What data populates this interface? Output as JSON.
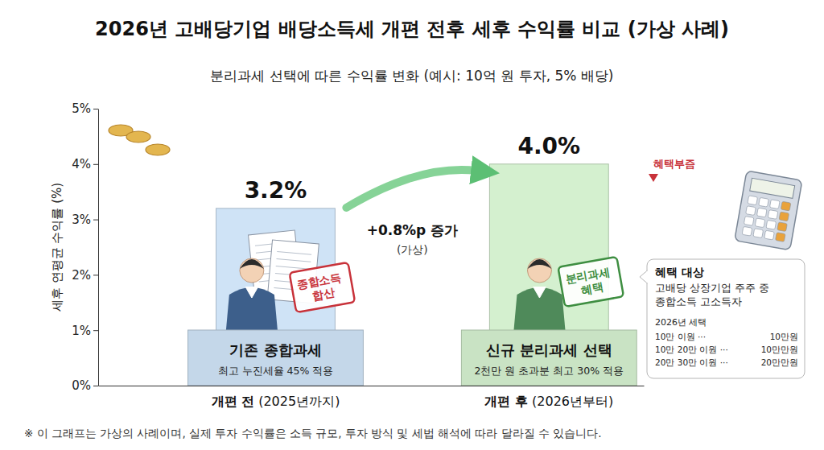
{
  "chart_data": {
    "type": "bar",
    "title": "2026년 고배당기업 배당소득세 개편 전후 세후 수익률 비교 (가상 사례)",
    "subtitle": "분리과세 선택에 따른 수익률 변화 (예시: 10억 원 투자, 5% 배당)",
    "y_label": "세후 연평균 수익률 (%)",
    "categories": [
      "개편 전 (2025년까지)",
      "개편 후 (2026년부터)"
    ],
    "values": [
      3.2,
      4.0
    ],
    "value_labels": [
      "3.2%",
      "4.0%"
    ],
    "colors": [
      "#cfe3f6",
      "#d4f0cf"
    ],
    "ylim": [
      0,
      5
    ],
    "yticks": [
      {
        "value": 0,
        "label": "0%"
      },
      {
        "value": 1,
        "label": "1%"
      },
      {
        "value": 2,
        "label": "2%"
      },
      {
        "value": 3,
        "label": "3%"
      },
      {
        "value": 4,
        "label": "4%"
      },
      {
        "value": 5,
        "label": "5%"
      }
    ],
    "grid": false,
    "data_labels": true,
    "bar_titles": [
      "기존 종합과세",
      "신규 분리과세 선택"
    ],
    "bar_notes": [
      "최고 누진세율 45% 적용",
      "2천만 원 초과분 최고 30% 적용"
    ],
    "stamps": [
      "종합소득 합산",
      "분리과세 혜택"
    ],
    "annotations": [
      "+0.8%p 증가",
      "(가상)"
    ],
    "badge": "혜택부즘",
    "info_box": {
      "title": "혜택 대상",
      "lines": [
        "고배당 상장기업 주주 중",
        "종합소득 고소득자"
      ],
      "table_title": "2026년 세택",
      "rows": [
        [
          "10만 이원 ···",
          "10만원"
        ],
        [
          "10만 20만 이원 ···",
          "10만만원"
        ],
        [
          "20만 30만 이원 ···",
          "20만만원"
        ]
      ]
    },
    "footnote": "※ 이 그래프는 가상의 사례이며, 실제 투자 수익률은 소득 규모, 투자 방식 및 세법 해석에 따라 달라질 수 있습니다."
  }
}
